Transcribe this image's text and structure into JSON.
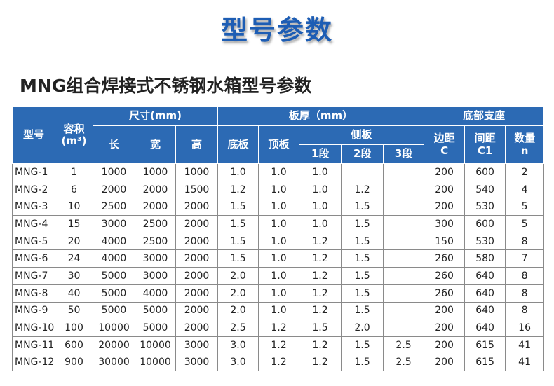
{
  "header": {
    "title": "型号参数",
    "subtitle": "MNG组合焊接式不锈钢水箱型号参数"
  },
  "table": {
    "header_rows": [
      [
        "型号",
        "容积\n(m³)",
        "尺寸(mm)",
        "板厚（mm）",
        "底部支座"
      ],
      [
        "长",
        "宽",
        "高",
        "底板",
        "顶板",
        "侧板",
        "边距\nC",
        "间距\nC1",
        "数量\nn"
      ],
      [
        "1段",
        "2段",
        "3段"
      ]
    ],
    "rows": [
      [
        "MNG-1",
        "1",
        "1000",
        "1000",
        "1000",
        "1.0",
        "1.0",
        "1.0",
        null,
        null,
        "200",
        "600",
        "2"
      ],
      [
        "MNG-2",
        "6",
        "2000",
        "2000",
        "1500",
        "1.2",
        "1.0",
        "1.0",
        "1.2",
        null,
        "200",
        "540",
        "4"
      ],
      [
        "MNG-3",
        "10",
        "2500",
        "2000",
        "2000",
        "1.5",
        "1.0",
        "1.0",
        "1.5",
        null,
        "200",
        "530",
        "5"
      ],
      [
        "MNG-4",
        "15",
        "3000",
        "2500",
        "2000",
        "1.5",
        "1.0",
        "1.0",
        "1.5",
        null,
        "300",
        "600",
        "5"
      ],
      [
        "MNG-5",
        "20",
        "4000",
        "2500",
        "2000",
        "1.5",
        "1.0",
        "1.2",
        "1.5",
        null,
        "150",
        "530",
        "8"
      ],
      [
        "MNG-6",
        "24",
        "4000",
        "3000",
        "2000",
        "1.5",
        "1.0",
        "1.2",
        "1.5",
        null,
        "260",
        "580",
        "7"
      ],
      [
        "MNG-7",
        "30",
        "5000",
        "3000",
        "2000",
        "2.0",
        "1.0",
        "1.2",
        "1.5",
        null,
        "260",
        "640",
        "8"
      ],
      [
        "MNG-8",
        "40",
        "5000",
        "4000",
        "2000",
        "2.0",
        "1.0",
        "1.2",
        "1.5",
        null,
        "260",
        "640",
        "8"
      ],
      [
        "MNG-9",
        "50",
        "5000",
        "5000",
        "2000",
        "2.0",
        "1.0",
        "1.2",
        "1.5",
        null,
        "200",
        "640",
        "8"
      ],
      [
        "MNG-10",
        "100",
        "10000",
        "5000",
        "2000",
        "2.5",
        "1.2",
        "1.5",
        "2.0",
        null,
        "200",
        "640",
        "16"
      ],
      [
        "MNG-11",
        "600",
        "20000",
        "10000",
        "3000",
        "3.0",
        "1.2",
        "1.2",
        "1.5",
        "2.5",
        "200",
        "615",
        "41"
      ],
      [
        "MNG-12",
        "900",
        "30000",
        "10000",
        "3000",
        "3.0",
        "1.2",
        "1.2",
        "1.5",
        "2.5",
        "200",
        "615",
        "41"
      ]
    ]
  }
}
